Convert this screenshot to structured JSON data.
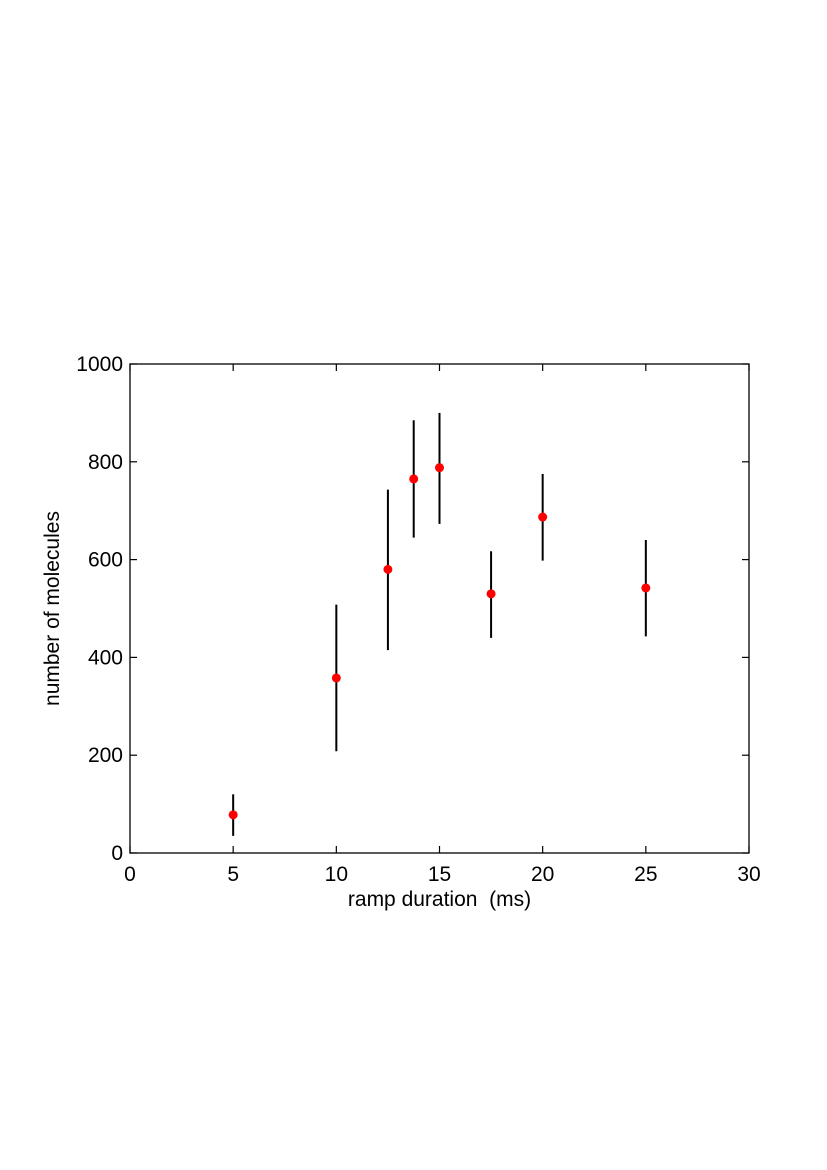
{
  "chart_data": {
    "type": "scatter",
    "title": "",
    "xlabel": "ramp duration  (ms)",
    "ylabel": "number of molecules",
    "xlim": [
      0,
      30
    ],
    "ylim": [
      0,
      1000
    ],
    "xticks": [
      0,
      5,
      10,
      15,
      20,
      25,
      30
    ],
    "yticks": [
      0,
      200,
      400,
      600,
      800,
      1000
    ],
    "grid": false,
    "legend": "none",
    "marker_color": "#ff0000",
    "errorbar_color": "#000000",
    "points": [
      {
        "x": 5,
        "y": 78,
        "err_low": 35,
        "err_high": 120
      },
      {
        "x": 10,
        "y": 358,
        "err_low": 208,
        "err_high": 508
      },
      {
        "x": 12.5,
        "y": 580,
        "err_low": 415,
        "err_high": 743
      },
      {
        "x": 13.75,
        "y": 765,
        "err_low": 645,
        "err_high": 885
      },
      {
        "x": 15,
        "y": 788,
        "err_low": 673,
        "err_high": 900
      },
      {
        "x": 17.5,
        "y": 530,
        "err_low": 440,
        "err_high": 617
      },
      {
        "x": 20,
        "y": 687,
        "err_low": 598,
        "err_high": 775
      },
      {
        "x": 25,
        "y": 542,
        "err_low": 443,
        "err_high": 640
      }
    ]
  }
}
